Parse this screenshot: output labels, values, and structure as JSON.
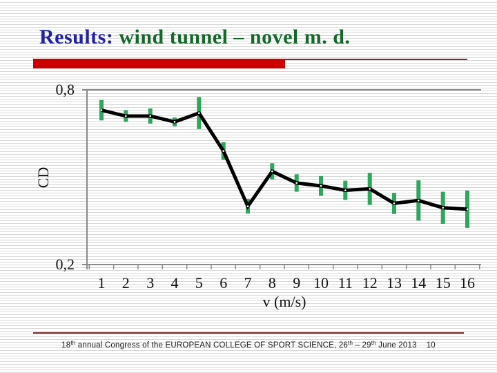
{
  "slide": {
    "title": {
      "prefix": "Results:",
      "rest": " wind tunnel – novel m. d."
    },
    "footer": {
      "part1": "18",
      "sup1": "th",
      "part2": " annual Congress of the EUROPEAN COLLEGE OF SPORT SCIENCE, 26",
      "sup2": "th",
      "part3": " – 29",
      "sup3": "th",
      "part4": " June 2013",
      "page_number": "10"
    },
    "colors": {
      "title_prefix": "#2222a6",
      "title_rest": "#15682a",
      "accent_bar": "#cc0000",
      "accent_thin_line": "#8b2222",
      "footer_line": "#7a2a2a"
    }
  },
  "chart_data": {
    "type": "line",
    "title": "",
    "xlabel": "v (m/s)",
    "ylabel": "CD",
    "categories": [
      "1",
      "2",
      "3",
      "4",
      "5",
      "6",
      "7",
      "8",
      "9",
      "10",
      "11",
      "12",
      "13",
      "14",
      "15",
      "16"
    ],
    "values": [
      0.73,
      0.71,
      0.71,
      0.69,
      0.72,
      0.59,
      0.4,
      0.52,
      0.48,
      0.47,
      0.455,
      0.46,
      0.41,
      0.42,
      0.395,
      0.39
    ],
    "error_bars": [
      0.035,
      0.02,
      0.026,
      0.015,
      0.055,
      0.03,
      0.025,
      0.028,
      0.03,
      0.034,
      0.033,
      0.055,
      0.036,
      0.069,
      0.055,
      0.064
    ],
    "ylim": [
      0.2,
      0.8
    ],
    "ytick_labels": [
      "0,8",
      "0,2"
    ],
    "grid": "top-line-only",
    "legend": "none",
    "line_color": "#000000",
    "marker": "white-dot",
    "error_bar_color": "#2EA65C",
    "axis_color": "#8a8a8a"
  }
}
